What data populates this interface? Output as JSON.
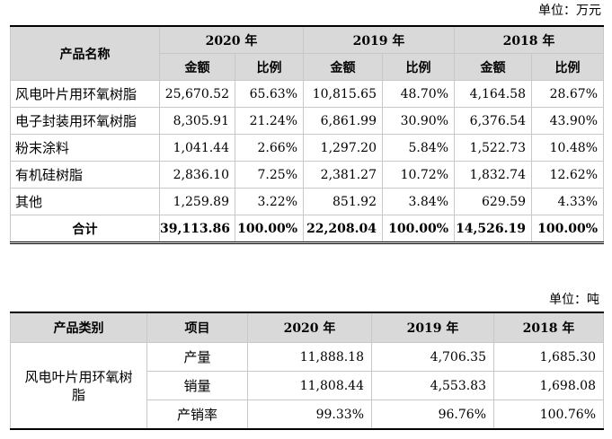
{
  "sales_table": {
    "unit": "单位：万元",
    "header": {
      "product_name": "产品名称",
      "years": [
        "2020 年",
        "2019 年",
        "2018 年"
      ],
      "amount": "金额",
      "ratio": "比例"
    },
    "rows": [
      {
        "name": "风电叶片用环氧树脂",
        "cells": [
          "25,670.52",
          "65.63%",
          "10,815.65",
          "48.70%",
          "4,164.58",
          "28.67%"
        ]
      },
      {
        "name": "电子封装用环氧树脂",
        "cells": [
          "8,305.91",
          "21.24%",
          "6,861.99",
          "30.90%",
          "6,376.54",
          "43.90%"
        ]
      },
      {
        "name": "粉末涂料",
        "cells": [
          "1,041.44",
          "2.66%",
          "1,297.20",
          "5.84%",
          "1,522.73",
          "10.48%"
        ]
      },
      {
        "name": "有机硅树脂",
        "cells": [
          "2,836.10",
          "7.25%",
          "2,381.27",
          "10.72%",
          "1,832.74",
          "12.62%"
        ]
      },
      {
        "name": "其他",
        "cells": [
          "1,259.89",
          "3.22%",
          "851.92",
          "3.84%",
          "629.59",
          "4.33%"
        ]
      }
    ],
    "total": {
      "name": "合计",
      "cells": [
        "39,113.86",
        "100.00%",
        "22,208.04",
        "100.00%",
        "14,526.19",
        "100.00%"
      ]
    }
  },
  "volume_table": {
    "unit": "单位：吨",
    "header": {
      "category": "产品类别",
      "item": "项目",
      "years": [
        "2020 年",
        "2019 年",
        "2018 年"
      ]
    },
    "category_name": "风电叶片用环氧树脂",
    "rows": [
      {
        "item": "产量",
        "cells": [
          "11,888.18",
          "4,706.35",
          "1,685.30"
        ]
      },
      {
        "item": "销量",
        "cells": [
          "11,808.44",
          "4,553.83",
          "1,698.08"
        ]
      },
      {
        "item": "产销率",
        "cells": [
          "99.33%",
          "96.76%",
          "100.76%"
        ]
      }
    ]
  }
}
